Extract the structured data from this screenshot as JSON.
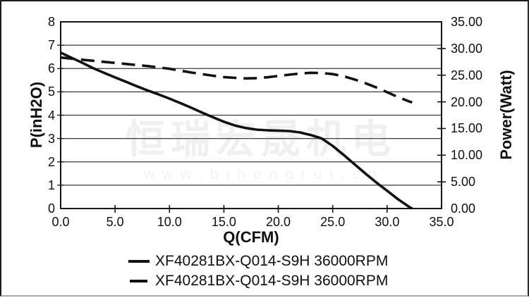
{
  "watermark": {
    "company": "恒瑞宏晟机电",
    "website": "www.bjhengrui.cn"
  },
  "colors": {
    "curve": "#111111",
    "axis": "#161616",
    "grid": "#3d3d3d",
    "text": "#0f0f0f",
    "watermark": "#f0f0f0",
    "background": "#ffffff"
  },
  "chart_data": {
    "type": "line",
    "title": "",
    "xlabel": "Q(CFM)",
    "x_range": [
      0,
      35
    ],
    "x_tick_step": 5,
    "x_tick_labels": [
      "0.0",
      "5.0",
      "10.0",
      "15.0",
      "20.0",
      "25.0",
      "30.0",
      "35.0"
    ],
    "y_left": {
      "label": "P(inH2O)",
      "range": [
        0,
        8
      ],
      "tick_step": 1,
      "tick_labels": [
        "0",
        "1",
        "2",
        "3",
        "4",
        "5",
        "6",
        "7",
        "8"
      ]
    },
    "y_right": {
      "label": "Power(Watt)",
      "range": [
        0,
        35
      ],
      "tick_step": 5,
      "tick_labels": [
        "0.00",
        "5.00",
        "10.00",
        "15.00",
        "20.00",
        "25.00",
        "30.00",
        "35.00"
      ]
    },
    "grid": "horizontal-only",
    "legend_position": "bottom",
    "series": [
      {
        "name": "XF40281BX-Q014-S9H 36000RPM",
        "axis": "left",
        "line_style": "solid",
        "color": "#111111",
        "points": [
          [
            0,
            6.68
          ],
          [
            1,
            6.46
          ],
          [
            2,
            6.24
          ],
          [
            3,
            6.01
          ],
          [
            4,
            5.81
          ],
          [
            5,
            5.62
          ],
          [
            6,
            5.43
          ],
          [
            7,
            5.24
          ],
          [
            8,
            5.06
          ],
          [
            9,
            4.89
          ],
          [
            10,
            4.71
          ],
          [
            11,
            4.52
          ],
          [
            12,
            4.32
          ],
          [
            13,
            4.11
          ],
          [
            14,
            3.91
          ],
          [
            15,
            3.72
          ],
          [
            16,
            3.56
          ],
          [
            17,
            3.45
          ],
          [
            18,
            3.38
          ],
          [
            19,
            3.35
          ],
          [
            20,
            3.34
          ],
          [
            21,
            3.32
          ],
          [
            22,
            3.26
          ],
          [
            23,
            3.15
          ],
          [
            24,
            3.0
          ],
          [
            25,
            2.68
          ],
          [
            26,
            2.3
          ],
          [
            27,
            1.9
          ],
          [
            28,
            1.5
          ],
          [
            29,
            1.12
          ],
          [
            30,
            0.76
          ],
          [
            31,
            0.4
          ],
          [
            32,
            0.08
          ],
          [
            32.3,
            0
          ]
        ]
      },
      {
        "name": "XF40281BX-Q014-S9H 36000RPM",
        "axis": "right",
        "line_style": "dashed",
        "color": "#111111",
        "points": [
          [
            0,
            28.3
          ],
          [
            2,
            27.9
          ],
          [
            4,
            27.5
          ],
          [
            6,
            27.1
          ],
          [
            8,
            26.7
          ],
          [
            10,
            26.2
          ],
          [
            12,
            25.5
          ],
          [
            14,
            24.9
          ],
          [
            15,
            24.65
          ],
          [
            16,
            24.5
          ],
          [
            17,
            24.4
          ],
          [
            18,
            24.45
          ],
          [
            19,
            24.6
          ],
          [
            20,
            24.85
          ],
          [
            21,
            25.1
          ],
          [
            22,
            25.3
          ],
          [
            23,
            25.45
          ],
          [
            24,
            25.4
          ],
          [
            25,
            25.2
          ],
          [
            26,
            24.8
          ],
          [
            27,
            24.2
          ],
          [
            28,
            23.5
          ],
          [
            29,
            22.7
          ],
          [
            30,
            21.8
          ],
          [
            31,
            20.9
          ],
          [
            32,
            20.1
          ],
          [
            32.3,
            19.9
          ]
        ]
      }
    ]
  }
}
